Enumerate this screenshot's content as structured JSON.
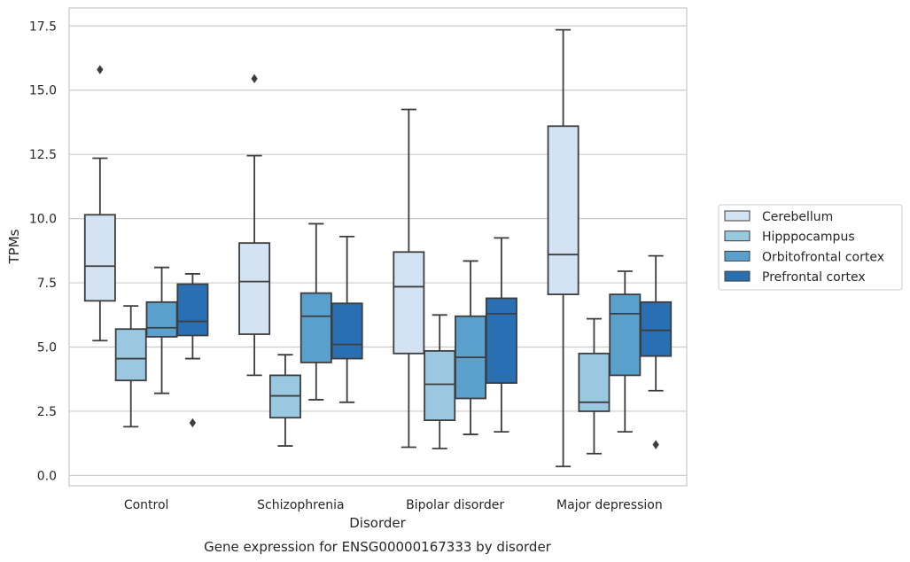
{
  "chart_data": {
    "type": "box",
    "title": "",
    "caption": "Gene expression for ENSG00000167333 by disorder",
    "xlabel": "Disorder",
    "ylabel": "TPMs",
    "ylim": [
      -0.4,
      18.2
    ],
    "yticks": [
      0.0,
      2.5,
      5.0,
      7.5,
      10.0,
      12.5,
      15.0,
      17.5
    ],
    "ytick_labels": [
      "0.0",
      "2.5",
      "5.0",
      "7.5",
      "10.0",
      "12.5",
      "15.0",
      "17.5"
    ],
    "grid": "horizontal",
    "legend_position": "right",
    "categories": [
      "Control",
      "Schizophrenia",
      "Bipolar disorder",
      "Major depression"
    ],
    "series": [
      {
        "name": "Cerebellum",
        "color": "#d3e3f3",
        "boxes": [
          {
            "whislo": 5.25,
            "q1": 6.8,
            "med": 8.15,
            "q3": 10.15,
            "whishi": 12.35,
            "fliers": [
              15.8
            ]
          },
          {
            "whislo": 3.9,
            "q1": 5.5,
            "med": 7.55,
            "q3": 9.05,
            "whishi": 12.45,
            "fliers": [
              15.45
            ]
          },
          {
            "whislo": 1.1,
            "q1": 4.75,
            "med": 7.35,
            "q3": 8.7,
            "whishi": 14.25,
            "fliers": []
          },
          {
            "whislo": 0.35,
            "q1": 7.05,
            "med": 8.6,
            "q3": 13.6,
            "whishi": 17.35,
            "fliers": []
          }
        ]
      },
      {
        "name": "Hipppocampus",
        "color": "#9ac8e0",
        "boxes": [
          {
            "whislo": 1.9,
            "q1": 3.7,
            "med": 4.55,
            "q3": 5.7,
            "whishi": 6.6,
            "fliers": []
          },
          {
            "whislo": 1.15,
            "q1": 2.25,
            "med": 3.1,
            "q3": 3.9,
            "whishi": 4.7,
            "fliers": []
          },
          {
            "whislo": 1.05,
            "q1": 2.15,
            "med": 3.55,
            "q3": 4.85,
            "whishi": 6.25,
            "fliers": []
          },
          {
            "whislo": 0.85,
            "q1": 2.5,
            "med": 2.85,
            "q3": 4.75,
            "whishi": 6.1,
            "fliers": []
          }
        ]
      },
      {
        "name": "Orbitofrontal cortex",
        "color": "#5aa0cd",
        "boxes": [
          {
            "whislo": 3.2,
            "q1": 5.4,
            "med": 5.75,
            "q3": 6.75,
            "whishi": 8.1,
            "fliers": []
          },
          {
            "whislo": 2.95,
            "q1": 4.4,
            "med": 6.2,
            "q3": 7.1,
            "whishi": 9.8,
            "fliers": []
          },
          {
            "whislo": 1.6,
            "q1": 3.0,
            "med": 4.6,
            "q3": 6.2,
            "whishi": 8.35,
            "fliers": []
          },
          {
            "whislo": 1.7,
            "q1": 3.9,
            "med": 6.3,
            "q3": 7.05,
            "whishi": 7.95,
            "fliers": []
          }
        ]
      },
      {
        "name": "Prefrontal cortex",
        "color": "#2a6fb2",
        "boxes": [
          {
            "whislo": 4.55,
            "q1": 5.45,
            "med": 6.0,
            "q3": 7.45,
            "whishi": 7.85,
            "fliers": [
              2.05
            ]
          },
          {
            "whislo": 2.85,
            "q1": 4.55,
            "med": 5.1,
            "q3": 6.7,
            "whishi": 9.3,
            "fliers": []
          },
          {
            "whislo": 1.7,
            "q1": 3.6,
            "med": 6.3,
            "q3": 6.9,
            "whishi": 9.25,
            "fliers": []
          },
          {
            "whislo": 3.3,
            "q1": 4.65,
            "med": 5.65,
            "q3": 6.75,
            "whishi": 8.55,
            "fliers": [
              1.2
            ]
          }
        ]
      }
    ]
  }
}
